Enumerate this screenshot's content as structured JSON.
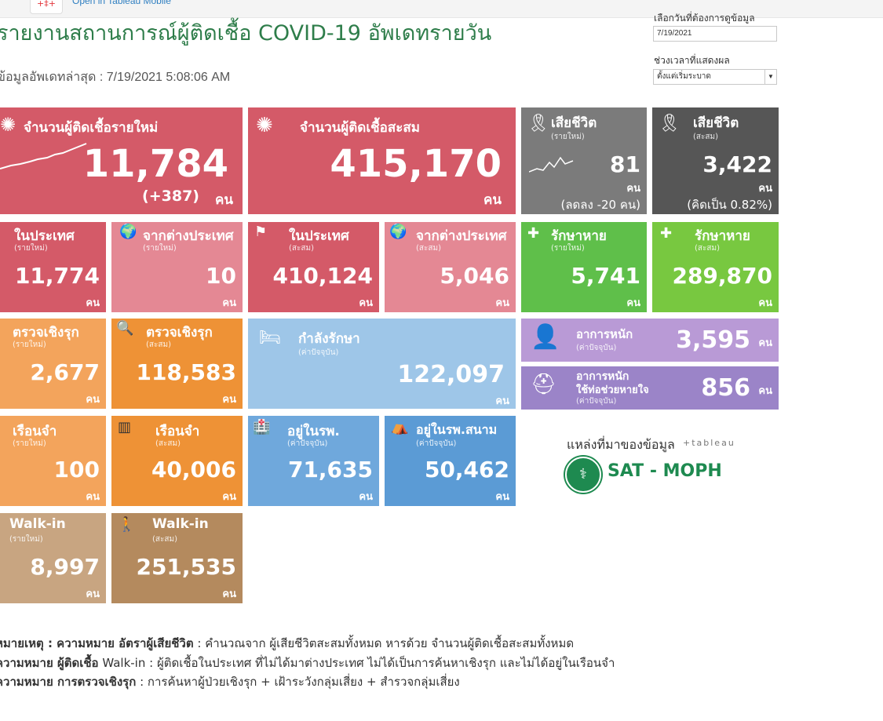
{
  "topbar": {
    "logo": "+‡+",
    "link": "Open in Tableau Mobile"
  },
  "header": {
    "title": "รายงานสถานการณ์ผู้ติดเชื้อ COVID-19 อัพเดทรายวัน",
    "updated": "ข้อมูลอัพเดทล่าสุด : 7/19/2021 5:08:06 AM"
  },
  "controls": {
    "date_label": "เลือกวันที่ต้องการดูข้อมูล",
    "date_value": "7/19/2021",
    "range_label": "ช่วงเวลาที่แสดงผล",
    "range_value": "ตั้งแต่เริ่มระบาด"
  },
  "tiles": {
    "new_cases": {
      "label": "จำนวนผู้ติดเชื้อรายใหม่",
      "value": "11,784",
      "note": "(+387)",
      "unit": "คน"
    },
    "total_cases": {
      "label": "จำนวนผู้ติดเชื้อสะสม",
      "value": "415,170",
      "unit": "คน"
    },
    "deaths_new": {
      "label": "เสียชีวิต",
      "sub": "(รายใหม่)",
      "value": "81",
      "unit": "คน",
      "note": "(ลดลง -20 คน)"
    },
    "deaths_total": {
      "label": "เสียชีวิต",
      "sub": "(สะสม)",
      "value": "3,422",
      "unit": "คน",
      "note": "(คิดเป็น 0.82%)"
    },
    "domestic_new": {
      "label": "ในประเทศ",
      "sub": "(รายใหม่)",
      "value": "11,774",
      "unit": "คน"
    },
    "abroad_new": {
      "label": "จากต่างประเทศ",
      "sub": "(รายใหม่)",
      "value": "10",
      "unit": "คน"
    },
    "domestic_total": {
      "label": "ในประเทศ",
      "sub": "(สะสม)",
      "value": "410,124",
      "unit": "คน"
    },
    "abroad_total": {
      "label": "จากต่างประเทศ",
      "sub": "(สะสม)",
      "value": "5,046",
      "unit": "คน"
    },
    "recovered_new": {
      "label": "รักษาหาย",
      "sub": "(รายใหม่)",
      "value": "5,741",
      "unit": "คน"
    },
    "recovered_total": {
      "label": "รักษาหาย",
      "sub": "(สะสม)",
      "value": "289,870",
      "unit": "คน"
    },
    "proactive_new": {
      "label": "ตรวจเชิงรุก",
      "sub": "(รายใหม่)",
      "value": "2,677",
      "unit": "คน"
    },
    "proactive_total": {
      "label": "ตรวจเชิงรุก",
      "sub": "(สะสม)",
      "value": "118,583",
      "unit": "คน"
    },
    "in_treatment": {
      "label": "กำลังรักษา",
      "sub": "(ค่าปัจจุบัน)",
      "value": "122,097",
      "unit": "คน"
    },
    "severe": {
      "label": "อาการหนัก",
      "sub": "(ค่าปัจจุบัน)",
      "value": "3,595",
      "unit": "คน"
    },
    "ventilator": {
      "label": "อาการหนัก",
      "label2": "ใช้ท่อช่วยหายใจ",
      "sub": "(ค่าปัจจุบัน)",
      "value": "856",
      "unit": "คน"
    },
    "prison_new": {
      "label": "เรือนจำ",
      "sub": "(รายใหม่)",
      "value": "100",
      "unit": "คน"
    },
    "prison_total": {
      "label": "เรือนจำ",
      "sub": "(สะสม)",
      "value": "40,006",
      "unit": "คน"
    },
    "hospital": {
      "label": "อยู่ในรพ.",
      "sub": "(ค่าปัจจุบัน)",
      "value": "71,635",
      "unit": "คน"
    },
    "field_hospital": {
      "label": "อยู่ในรพ.สนาม",
      "sub": "(ค่าปัจจุบัน)",
      "value": "50,462",
      "unit": "คน"
    },
    "walkin_new": {
      "label": "Walk-in",
      "sub": "(รายใหม่)",
      "value": "8,997",
      "unit": "คน"
    },
    "walkin_total": {
      "label": "Walk-in",
      "sub": "(สะสม)",
      "value": "251,535",
      "unit": "คน"
    }
  },
  "source": {
    "label": "แหล่งที่มาของข้อมูล",
    "tableau": "+tableau",
    "org": "SAT - MOPH"
  },
  "footnotes": [
    {
      "head": "หมายเหตุ : ความหมาย อัตราผู้เสียชีวิต",
      "text": " : คำนวณจาก ผู้เสียชีวิตสะสมทั้งหมด หารด้วย จำนวนผู้ติดเชื้อสะสมทั้งหมด"
    },
    {
      "head": "ความหมาย ผู้ติดเชื้อ",
      "text": " Walk-in : ผู้ติดเชื้อในประเทศ ที่ไม่ได้มาต่างประเทศ ไม่ได้เป็นการค้นหาเชิงรุก และไม่ได้อยู่ในเรือนจำ"
    },
    {
      "head": "ความหมาย การตรวจเชิงรุก",
      "text": " :  การค้นหาผู้ป่วยเชิงรุก + เฝ้าระวังกลุ่มเสี่ยง + สำรวจกลุ่มเสี่ยง"
    }
  ]
}
